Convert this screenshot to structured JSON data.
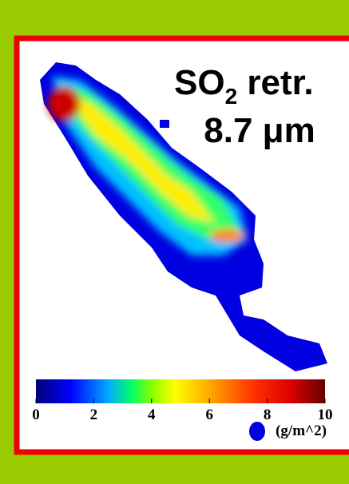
{
  "title": {
    "main": "SO",
    "subscript": "2",
    "rest": " retr."
  },
  "wavelength": "8.7 μm",
  "colorbar": {
    "range": [
      0,
      10
    ],
    "ticks": [
      0,
      2,
      4,
      6,
      8,
      10
    ],
    "unit": "(g/m^2)"
  }
}
